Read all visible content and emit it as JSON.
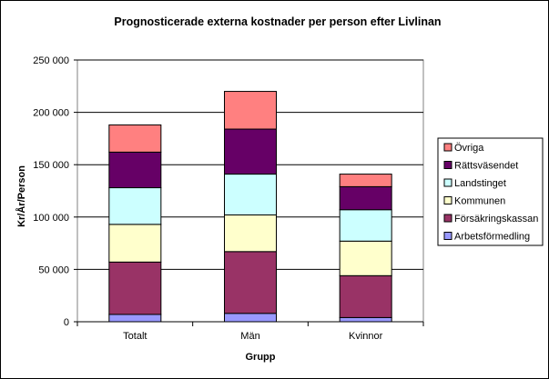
{
  "chart_data": {
    "type": "bar",
    "stacked": true,
    "title": "Prognosticerade externa kostnader per person efter Livlinan",
    "xlabel": "Grupp",
    "ylabel": "Kr/År/Person",
    "ylim": [
      0,
      250000
    ],
    "yticks": [
      0,
      50000,
      100000,
      150000,
      200000,
      250000
    ],
    "ytick_labels": [
      "0",
      "50 000",
      "100 000",
      "150 000",
      "200 000",
      "250 000"
    ],
    "categories": [
      "Totalt",
      "Män",
      "Kvinnor"
    ],
    "grid": "horizontal",
    "legend_position": "right",
    "series": [
      {
        "name": "Arbetsförmedling",
        "color": "#9999ff",
        "values": [
          7000,
          8000,
          4000
        ]
      },
      {
        "name": "Försäkringskassan",
        "color": "#993366",
        "values": [
          50000,
          59000,
          40000
        ]
      },
      {
        "name": "Kommunen",
        "color": "#ffffcc",
        "values": [
          36000,
          35000,
          33000
        ]
      },
      {
        "name": "Landstinget",
        "color": "#ccffff",
        "values": [
          35000,
          39000,
          30000
        ]
      },
      {
        "name": "Rättsväsendet",
        "color": "#660066",
        "values": [
          34000,
          43000,
          22000
        ]
      },
      {
        "name": "Övriga",
        "color": "#ff8080",
        "values": [
          26000,
          36000,
          12000
        ]
      }
    ]
  }
}
